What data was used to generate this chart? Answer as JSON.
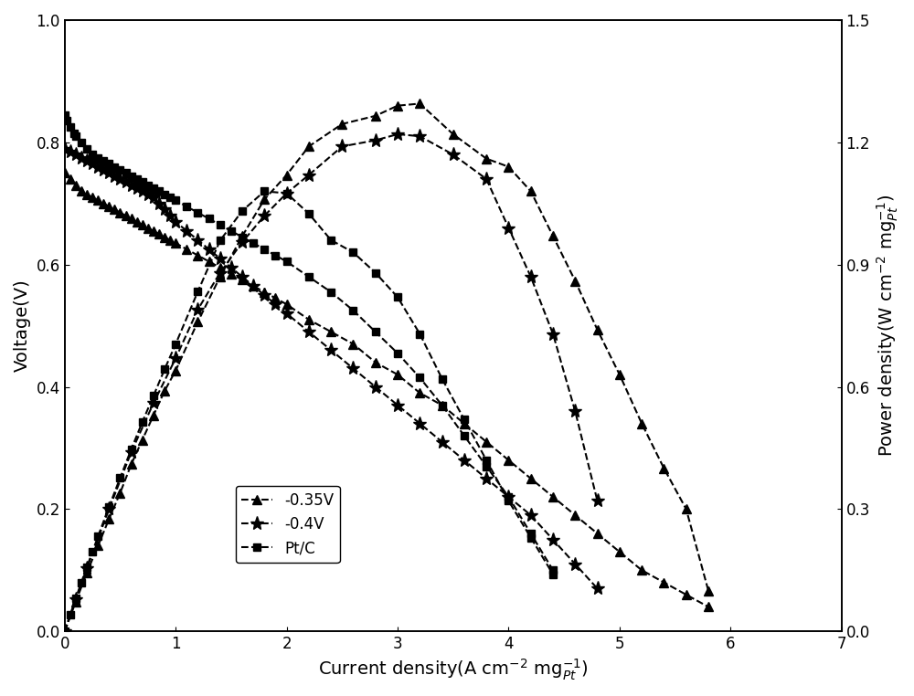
{
  "title": "",
  "xlabel": "Current density(A cm-2 mg-1_Pt)",
  "ylabel_left": "Voltage(V)",
  "ylabel_right": "Power density(W cm-2 mg-1_Pt)",
  "xlim": [
    0,
    7
  ],
  "ylim_left": [
    0,
    1.0
  ],
  "ylim_right": [
    0,
    1.5
  ],
  "xticks": [
    0,
    1,
    2,
    3,
    4,
    5,
    6,
    7
  ],
  "yticks_left": [
    0.0,
    0.2,
    0.4,
    0.6,
    0.8,
    1.0
  ],
  "yticks_right": [
    0.0,
    0.3,
    0.6,
    0.9,
    1.2,
    1.5
  ],
  "series": [
    {
      "label": "-0.35V",
      "marker": "^",
      "linestyle": "--",
      "color": "#000000",
      "voltage_x": [
        0.0,
        0.05,
        0.1,
        0.15,
        0.2,
        0.25,
        0.3,
        0.35,
        0.4,
        0.45,
        0.5,
        0.55,
        0.6,
        0.65,
        0.7,
        0.75,
        0.8,
        0.85,
        0.9,
        0.95,
        1.0,
        1.1,
        1.2,
        1.3,
        1.4,
        1.5,
        1.6,
        1.7,
        1.8,
        1.9,
        2.0,
        2.2,
        2.4,
        2.6,
        2.8,
        3.0,
        3.2,
        3.4,
        3.6,
        3.8,
        4.0,
        4.2,
        4.4,
        4.6,
        4.8,
        5.0,
        5.2,
        5.4,
        5.6,
        5.8
      ],
      "voltage_y": [
        0.75,
        0.74,
        0.73,
        0.72,
        0.715,
        0.71,
        0.705,
        0.7,
        0.695,
        0.69,
        0.685,
        0.68,
        0.675,
        0.67,
        0.665,
        0.66,
        0.655,
        0.65,
        0.645,
        0.64,
        0.635,
        0.625,
        0.615,
        0.605,
        0.595,
        0.585,
        0.575,
        0.565,
        0.555,
        0.545,
        0.535,
        0.51,
        0.49,
        0.47,
        0.44,
        0.42,
        0.39,
        0.37,
        0.34,
        0.31,
        0.28,
        0.25,
        0.22,
        0.19,
        0.16,
        0.13,
        0.1,
        0.08,
        0.06,
        0.04
      ],
      "power_x": [
        0.0,
        0.1,
        0.2,
        0.3,
        0.4,
        0.5,
        0.6,
        0.7,
        0.8,
        0.9,
        1.0,
        1.2,
        1.4,
        1.6,
        1.8,
        2.0,
        2.2,
        2.5,
        2.8,
        3.0,
        3.2,
        3.5,
        3.8,
        4.0,
        4.2,
        4.4,
        4.6,
        4.8,
        5.0,
        5.2,
        5.4,
        5.6,
        5.8
      ],
      "power_y": [
        0.0,
        0.073,
        0.144,
        0.21,
        0.276,
        0.34,
        0.41,
        0.47,
        0.53,
        0.59,
        0.64,
        0.76,
        0.87,
        0.97,
        1.06,
        1.12,
        1.19,
        1.245,
        1.265,
        1.29,
        1.295,
        1.22,
        1.16,
        1.14,
        1.08,
        0.97,
        0.86,
        0.74,
        0.63,
        0.51,
        0.4,
        0.3,
        0.1
      ]
    },
    {
      "label": "-0.4V",
      "marker": "*",
      "linestyle": "--",
      "color": "#000000",
      "voltage_x": [
        0.0,
        0.05,
        0.1,
        0.15,
        0.2,
        0.25,
        0.3,
        0.35,
        0.4,
        0.45,
        0.5,
        0.55,
        0.6,
        0.65,
        0.7,
        0.75,
        0.8,
        0.85,
        0.9,
        0.95,
        1.0,
        1.1,
        1.2,
        1.3,
        1.4,
        1.5,
        1.6,
        1.7,
        1.8,
        1.9,
        2.0,
        2.2,
        2.4,
        2.6,
        2.8,
        3.0,
        3.2,
        3.4,
        3.6,
        3.8,
        4.0,
        4.2,
        4.4,
        4.6,
        4.8
      ],
      "voltage_y": [
        0.79,
        0.785,
        0.78,
        0.775,
        0.77,
        0.765,
        0.76,
        0.755,
        0.75,
        0.745,
        0.74,
        0.735,
        0.73,
        0.725,
        0.72,
        0.715,
        0.71,
        0.7,
        0.69,
        0.68,
        0.67,
        0.655,
        0.64,
        0.625,
        0.61,
        0.595,
        0.58,
        0.565,
        0.55,
        0.535,
        0.52,
        0.49,
        0.46,
        0.43,
        0.4,
        0.37,
        0.34,
        0.31,
        0.28,
        0.25,
        0.22,
        0.19,
        0.15,
        0.11,
        0.07
      ],
      "power_x": [
        0.0,
        0.1,
        0.2,
        0.4,
        0.6,
        0.8,
        1.0,
        1.2,
        1.4,
        1.6,
        1.8,
        2.0,
        2.2,
        2.5,
        2.8,
        3.0,
        3.2,
        3.5,
        3.8,
        4.0,
        4.2,
        4.4,
        4.6,
        4.8
      ],
      "power_y": [
        0.0,
        0.078,
        0.155,
        0.3,
        0.44,
        0.56,
        0.67,
        0.79,
        0.88,
        0.955,
        1.02,
        1.075,
        1.12,
        1.19,
        1.205,
        1.22,
        1.215,
        1.17,
        1.11,
        0.99,
        0.87,
        0.73,
        0.54,
        0.32
      ]
    },
    {
      "label": "Pt/C",
      "marker": "s",
      "linestyle": "--",
      "color": "#000000",
      "voltage_x": [
        0.0,
        0.02,
        0.05,
        0.08,
        0.1,
        0.15,
        0.2,
        0.25,
        0.3,
        0.35,
        0.4,
        0.45,
        0.5,
        0.55,
        0.6,
        0.65,
        0.7,
        0.75,
        0.8,
        0.85,
        0.9,
        0.95,
        1.0,
        1.1,
        1.2,
        1.3,
        1.4,
        1.5,
        1.6,
        1.7,
        1.8,
        1.9,
        2.0,
        2.2,
        2.4,
        2.6,
        2.8,
        3.0,
        3.2,
        3.4,
        3.6,
        3.8,
        4.0,
        4.2,
        4.4
      ],
      "voltage_y": [
        0.845,
        0.835,
        0.825,
        0.815,
        0.81,
        0.8,
        0.79,
        0.78,
        0.775,
        0.77,
        0.765,
        0.76,
        0.755,
        0.75,
        0.745,
        0.74,
        0.735,
        0.73,
        0.725,
        0.72,
        0.715,
        0.71,
        0.705,
        0.695,
        0.685,
        0.675,
        0.665,
        0.655,
        0.645,
        0.635,
        0.625,
        0.615,
        0.605,
        0.58,
        0.555,
        0.525,
        0.49,
        0.455,
        0.415,
        0.37,
        0.32,
        0.27,
        0.22,
        0.16,
        0.1
      ],
      "power_x": [
        0.0,
        0.05,
        0.1,
        0.15,
        0.2,
        0.25,
        0.3,
        0.4,
        0.5,
        0.6,
        0.7,
        0.8,
        0.9,
        1.0,
        1.2,
        1.4,
        1.6,
        1.8,
        2.0,
        2.2,
        2.4,
        2.6,
        2.8,
        3.0,
        3.2,
        3.4,
        3.6,
        3.8,
        4.0,
        4.2,
        4.4
      ],
      "power_y": [
        0.0,
        0.041,
        0.081,
        0.12,
        0.158,
        0.195,
        0.233,
        0.306,
        0.377,
        0.447,
        0.514,
        0.578,
        0.643,
        0.705,
        0.834,
        0.959,
        1.032,
        1.08,
        1.075,
        1.025,
        0.96,
        0.93,
        0.88,
        0.82,
        0.73,
        0.62,
        0.52,
        0.42,
        0.32,
        0.23,
        0.14
      ]
    }
  ],
  "background_color": "#ffffff",
  "line_color": "#000000",
  "markersize_triangle": 7,
  "markersize_star": 11,
  "markersize_square": 6,
  "linewidth": 1.5,
  "fontsize_labels": 14,
  "fontsize_ticks": 12,
  "fontsize_legend": 12
}
